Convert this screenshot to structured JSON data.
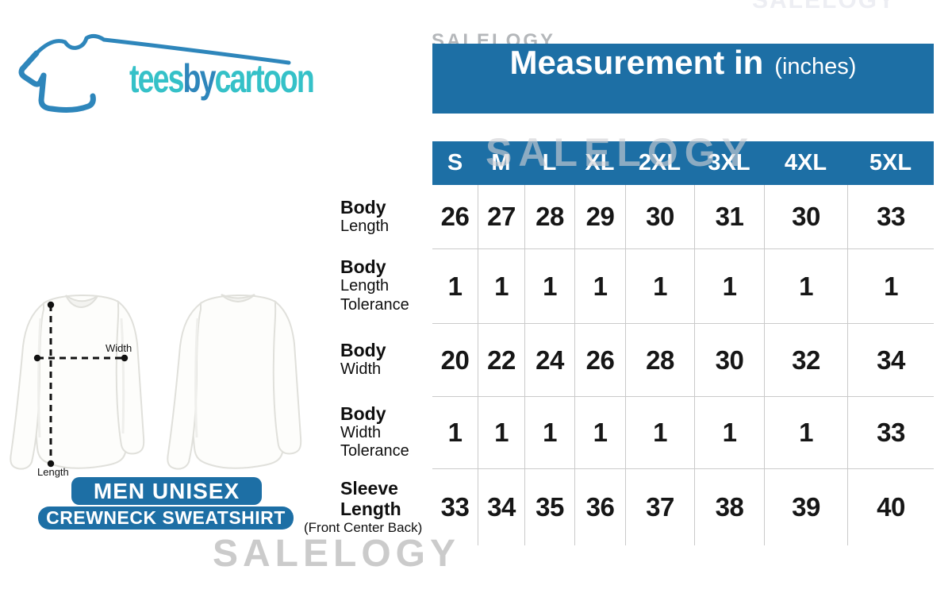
{
  "colors": {
    "header_blue": "#1d6fa5",
    "logo_teal": "#35c1c8",
    "logo_blue": "#2e86bb",
    "grid_line": "#cacaca",
    "watermark_gray": "#cbcbcb"
  },
  "logo": {
    "part1": "tees",
    "part2": "by",
    "part3": "cartoon"
  },
  "header": {
    "title": "Measurement in",
    "unit": "(inches)"
  },
  "watermark_text": "SALELOGY",
  "product": {
    "line1": "MEN UNISEX",
    "line2": "CREWNECK SWEATSHIRT"
  },
  "diagram": {
    "width_label": "Width",
    "length_label": "Length"
  },
  "chart_data": {
    "type": "table",
    "title": "Measurement in (inches)",
    "columns": [
      "S",
      "M",
      "L",
      "XL",
      "2XL",
      "3XL",
      "4XL",
      "5XL"
    ],
    "rows": [
      {
        "label": "Body Length",
        "label_lines": [
          {
            "text": "Body",
            "bold": true
          },
          {
            "text": "Length",
            "bold": false
          }
        ],
        "values": [
          26,
          27,
          28,
          29,
          30,
          31,
          30,
          33
        ]
      },
      {
        "label": "Body Length Tolerance",
        "label_lines": [
          {
            "text": "Body",
            "bold": true
          },
          {
            "text": "Length",
            "bold": false
          },
          {
            "text": "Tolerance",
            "bold": false
          }
        ],
        "values": [
          1,
          1,
          1,
          1,
          1,
          1,
          1,
          1
        ]
      },
      {
        "label": "Body Width",
        "label_lines": [
          {
            "text": "Body",
            "bold": true
          },
          {
            "text": "Width",
            "bold": false
          }
        ],
        "values": [
          20,
          22,
          24,
          26,
          28,
          30,
          32,
          34
        ]
      },
      {
        "label": "Body Width Tolerance",
        "label_lines": [
          {
            "text": "Body",
            "bold": true
          },
          {
            "text": "Width",
            "bold": false
          },
          {
            "text": "Tolerance",
            "bold": false
          }
        ],
        "values": [
          1,
          1,
          1,
          1,
          1,
          1,
          1,
          33
        ]
      },
      {
        "label": "Sleeve Length (Front Center Back)",
        "label_lines": [
          {
            "text": "Sleeve",
            "bold": true
          },
          {
            "text": "Length",
            "bold": true
          },
          {
            "text": "(Front Center Back)",
            "bold": false,
            "small": true
          }
        ],
        "values": [
          33,
          34,
          35,
          36,
          37,
          38,
          39,
          40
        ]
      }
    ]
  }
}
